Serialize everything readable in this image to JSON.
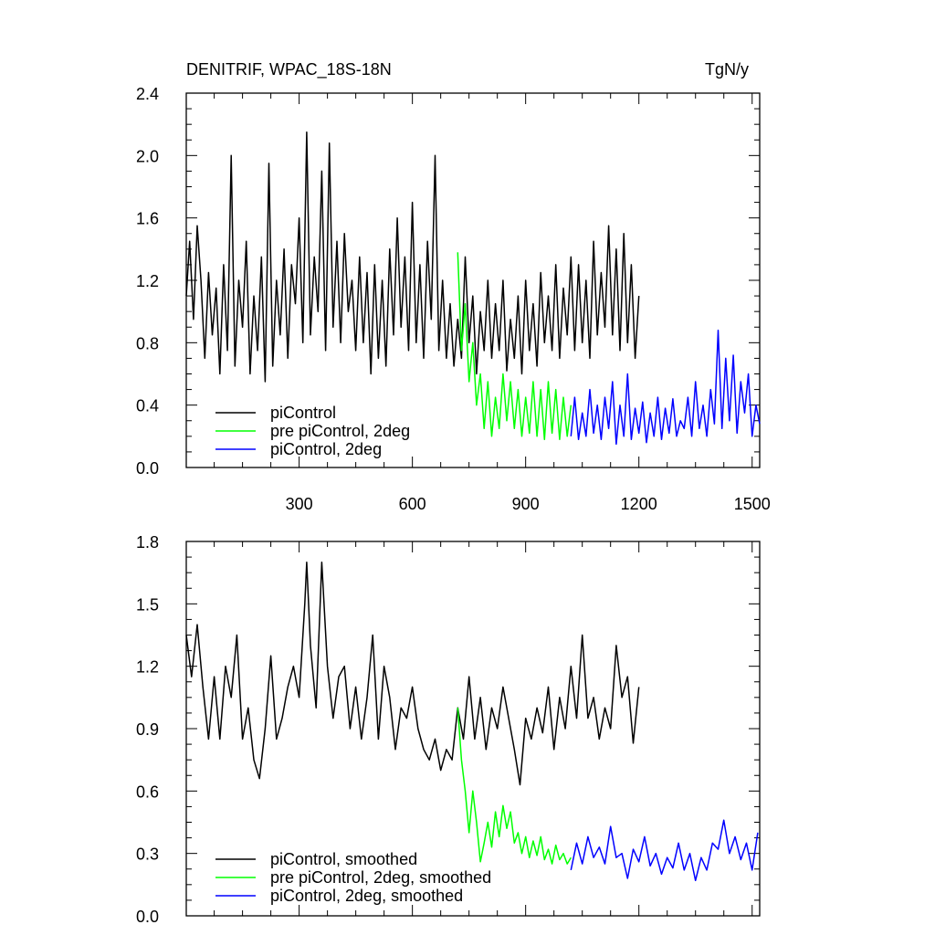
{
  "chart_data": [
    {
      "type": "line",
      "title": "DENITRIF, WPAC_18S-18N",
      "units": "TgN/y",
      "xlim": [
        1,
        1520
      ],
      "ylim": [
        0,
        2.4
      ],
      "xticks": [
        300,
        600,
        900,
        1200,
        1500
      ],
      "yticks": [
        0.0,
        0.4,
        0.8,
        1.2,
        1.6,
        2.0,
        2.4
      ],
      "ytick_labels": [
        "0.0",
        "0.4",
        "0.8",
        "1.2",
        "1.6",
        "2.0",
        "2.4"
      ],
      "legend_position": "bottom-left",
      "series": [
        {
          "name": "piControl",
          "color": "#000000",
          "x": [
            1,
            10,
            20,
            30,
            40,
            50,
            60,
            70,
            80,
            90,
            100,
            110,
            120,
            130,
            140,
            150,
            160,
            170,
            180,
            190,
            200,
            210,
            220,
            230,
            240,
            250,
            260,
            270,
            280,
            290,
            300,
            310,
            320,
            330,
            340,
            350,
            360,
            370,
            380,
            390,
            400,
            410,
            420,
            430,
            440,
            450,
            460,
            470,
            480,
            490,
            500,
            510,
            520,
            530,
            540,
            550,
            560,
            570,
            580,
            590,
            600,
            610,
            620,
            630,
            640,
            650,
            660,
            670,
            680,
            690,
            700,
            710,
            720,
            730,
            740,
            750,
            760,
            770,
            780,
            790,
            800,
            810,
            820,
            830,
            840,
            850,
            860,
            870,
            880,
            890,
            900,
            910,
            920,
            930,
            940,
            950,
            960,
            970,
            980,
            990,
            1000,
            1010,
            1020,
            1030,
            1040,
            1050,
            1060,
            1070,
            1080,
            1090,
            1100,
            1110,
            1120,
            1130,
            1140,
            1150,
            1160,
            1170,
            1180,
            1190,
            1200
          ],
          "y": [
            1.1,
            1.45,
            0.95,
            1.55,
            1.2,
            0.7,
            1.25,
            0.85,
            1.15,
            0.6,
            1.3,
            0.75,
            2.0,
            0.65,
            1.2,
            0.9,
            1.45,
            0.6,
            1.1,
            0.75,
            1.35,
            0.55,
            1.95,
            0.65,
            1.2,
            0.85,
            1.4,
            0.7,
            1.3,
            1.05,
            1.6,
            0.8,
            2.15,
            0.85,
            1.35,
            1.0,
            1.9,
            0.75,
            2.08,
            0.9,
            1.45,
            0.8,
            1.5,
            1.0,
            1.2,
            0.75,
            1.35,
            0.8,
            1.25,
            0.6,
            1.3,
            0.7,
            1.2,
            0.65,
            1.4,
            0.85,
            1.6,
            0.9,
            1.35,
            0.75,
            1.7,
            0.8,
            1.3,
            0.7,
            1.45,
            0.95,
            2.0,
            0.75,
            1.2,
            0.7,
            1.05,
            0.65,
            0.95,
            0.7,
            1.35,
            0.8,
            1.1,
            0.6,
            1.0,
            0.75,
            1.2,
            0.7,
            1.05,
            0.75,
            1.2,
            0.62,
            0.95,
            0.7,
            1.1,
            0.6,
            1.2,
            0.75,
            1.05,
            0.65,
            1.25,
            0.8,
            1.1,
            0.75,
            1.3,
            0.7,
            1.15,
            0.85,
            1.35,
            0.75,
            1.3,
            0.8,
            1.2,
            0.7,
            1.45,
            0.85,
            1.25,
            0.9,
            1.55,
            0.85,
            1.4,
            0.75,
            1.5,
            0.8,
            1.3,
            0.7,
            1.1
          ]
        },
        {
          "name": "pre piControl, 2deg",
          "color": "#00ff00",
          "x": [
            720,
            730,
            740,
            750,
            760,
            770,
            780,
            790,
            800,
            810,
            820,
            830,
            840,
            850,
            860,
            870,
            880,
            890,
            900,
            910,
            920,
            930,
            940,
            950,
            960,
            970,
            980,
            990,
            1000,
            1010,
            1020
          ],
          "y": [
            1.38,
            0.75,
            1.05,
            0.55,
            0.8,
            0.4,
            0.6,
            0.25,
            0.55,
            0.2,
            0.45,
            0.25,
            0.6,
            0.3,
            0.55,
            0.25,
            0.5,
            0.2,
            0.45,
            0.22,
            0.55,
            0.2,
            0.5,
            0.18,
            0.55,
            0.22,
            0.5,
            0.18,
            0.45,
            0.2,
            0.4
          ]
        },
        {
          "name": "piControl, 2deg",
          "color": "#0000ff",
          "x": [
            1020,
            1030,
            1040,
            1050,
            1060,
            1070,
            1080,
            1090,
            1100,
            1110,
            1120,
            1130,
            1140,
            1150,
            1160,
            1170,
            1180,
            1190,
            1200,
            1210,
            1220,
            1230,
            1240,
            1250,
            1260,
            1270,
            1280,
            1290,
            1300,
            1310,
            1320,
            1330,
            1340,
            1350,
            1360,
            1370,
            1380,
            1390,
            1400,
            1410,
            1420,
            1430,
            1440,
            1450,
            1460,
            1470,
            1480,
            1490,
            1500,
            1510,
            1520
          ],
          "y": [
            0.2,
            0.45,
            0.18,
            0.35,
            0.2,
            0.5,
            0.22,
            0.4,
            0.18,
            0.45,
            0.25,
            0.55,
            0.15,
            0.4,
            0.2,
            0.6,
            0.18,
            0.38,
            0.22,
            0.42,
            0.16,
            0.35,
            0.2,
            0.45,
            0.18,
            0.38,
            0.22,
            0.44,
            0.2,
            0.3,
            0.25,
            0.45,
            0.2,
            0.55,
            0.25,
            0.4,
            0.2,
            0.5,
            0.28,
            0.88,
            0.25,
            0.7,
            0.3,
            0.72,
            0.22,
            0.55,
            0.35,
            0.6,
            0.2,
            0.4,
            0.28
          ]
        }
      ]
    },
    {
      "type": "line",
      "title": "",
      "xlim": [
        1,
        1520
      ],
      "ylim": [
        0,
        1.8
      ],
      "xticks": [
        300,
        600,
        900,
        1200,
        1500
      ],
      "yticks": [
        0.0,
        0.3,
        0.6,
        0.9,
        1.2,
        1.5,
        1.8
      ],
      "ytick_labels": [
        "0.0",
        "0.3",
        "0.6",
        "0.9",
        "1.2",
        "1.5",
        "1.8"
      ],
      "legend_position": "bottom-left",
      "series": [
        {
          "name": "piControl, smoothed",
          "color": "#000000",
          "x": [
            1,
            15,
            30,
            45,
            60,
            75,
            90,
            105,
            120,
            135,
            150,
            165,
            180,
            195,
            210,
            225,
            240,
            255,
            270,
            285,
            300,
            315,
            320,
            330,
            345,
            360,
            375,
            390,
            405,
            420,
            435,
            450,
            465,
            480,
            495,
            510,
            525,
            540,
            555,
            570,
            585,
            600,
            615,
            630,
            645,
            660,
            675,
            690,
            705,
            720,
            735,
            750,
            765,
            780,
            795,
            810,
            825,
            840,
            855,
            870,
            885,
            900,
            915,
            930,
            945,
            960,
            975,
            990,
            1005,
            1020,
            1035,
            1050,
            1065,
            1080,
            1095,
            1110,
            1125,
            1140,
            1155,
            1170,
            1185,
            1200
          ],
          "y": [
            1.35,
            1.15,
            1.4,
            1.1,
            0.85,
            1.15,
            0.85,
            1.2,
            1.05,
            1.35,
            0.85,
            1.0,
            0.75,
            0.66,
            0.9,
            1.25,
            0.85,
            0.95,
            1.1,
            1.2,
            1.05,
            1.5,
            1.7,
            1.3,
            1.0,
            1.7,
            1.2,
            0.95,
            1.15,
            1.2,
            0.9,
            1.1,
            0.85,
            1.05,
            1.35,
            0.85,
            1.2,
            1.05,
            0.8,
            1.0,
            0.95,
            1.1,
            0.9,
            0.8,
            0.75,
            0.85,
            0.7,
            0.8,
            0.75,
            1.0,
            0.85,
            1.15,
            0.85,
            1.05,
            0.8,
            1.0,
            0.9,
            1.1,
            0.95,
            0.8,
            0.63,
            0.95,
            0.85,
            1.0,
            0.88,
            1.1,
            0.8,
            1.05,
            0.9,
            1.2,
            0.95,
            1.35,
            0.95,
            1.05,
            0.85,
            1.0,
            0.9,
            1.3,
            1.05,
            1.15,
            0.83,
            1.1
          ]
        },
        {
          "name": "pre piControl, 2deg, smoothed",
          "color": "#00ff00",
          "x": [
            720,
            730,
            740,
            750,
            760,
            770,
            780,
            790,
            800,
            810,
            820,
            830,
            840,
            850,
            860,
            870,
            880,
            890,
            900,
            910,
            920,
            930,
            940,
            950,
            960,
            970,
            980,
            990,
            1000,
            1010,
            1020
          ],
          "y": [
            1.0,
            0.75,
            0.6,
            0.4,
            0.6,
            0.45,
            0.26,
            0.35,
            0.45,
            0.33,
            0.5,
            0.38,
            0.53,
            0.42,
            0.5,
            0.35,
            0.4,
            0.3,
            0.38,
            0.28,
            0.36,
            0.29,
            0.38,
            0.27,
            0.32,
            0.25,
            0.34,
            0.27,
            0.3,
            0.25,
            0.28
          ]
        },
        {
          "name": "piControl, 2deg, smoothed",
          "color": "#0000ff",
          "x": [
            1020,
            1035,
            1050,
            1065,
            1080,
            1095,
            1110,
            1125,
            1140,
            1155,
            1170,
            1185,
            1200,
            1215,
            1230,
            1245,
            1260,
            1275,
            1290,
            1305,
            1320,
            1335,
            1350,
            1365,
            1380,
            1395,
            1410,
            1425,
            1440,
            1455,
            1470,
            1485,
            1500,
            1515
          ],
          "y": [
            0.22,
            0.35,
            0.25,
            0.38,
            0.28,
            0.33,
            0.25,
            0.43,
            0.28,
            0.3,
            0.18,
            0.32,
            0.26,
            0.38,
            0.24,
            0.3,
            0.2,
            0.28,
            0.23,
            0.35,
            0.22,
            0.3,
            0.17,
            0.28,
            0.22,
            0.35,
            0.32,
            0.46,
            0.3,
            0.38,
            0.27,
            0.35,
            0.22,
            0.4
          ]
        }
      ]
    }
  ]
}
